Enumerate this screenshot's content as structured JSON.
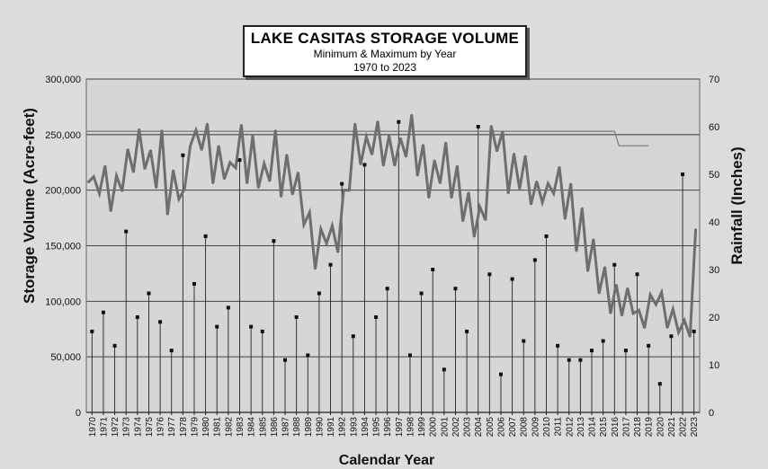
{
  "chart_data": {
    "type": "line",
    "title": "LAKE CASITAS STORAGE VOLUME",
    "subtitle": "Minimum & Maximum by Year",
    "subtitle2": "1970 to 2023",
    "xlabel": "Calendar Year",
    "ylabel": "Storage Volume (Acre-feet)",
    "y2label": "Rainfall (Inches)",
    "ylim": [
      0,
      300000
    ],
    "y2lim": [
      0,
      70
    ],
    "yticks": [
      0,
      50000,
      100000,
      150000,
      200000,
      250000,
      300000
    ],
    "ytick_labels": [
      "0",
      "50,000",
      "100,000",
      "150,000",
      "200,000",
      "250,000",
      "300,000"
    ],
    "y2ticks": [
      0,
      10,
      20,
      30,
      40,
      50,
      60,
      70
    ],
    "y2tick_labels": [
      "0",
      "10",
      "20",
      "30",
      "40",
      "50",
      "60",
      "70"
    ],
    "grid": true,
    "categories": [
      "1970",
      "1971",
      "1972",
      "1973",
      "1974",
      "1975",
      "1976",
      "1977",
      "1978",
      "1979",
      "1980",
      "1981",
      "1982",
      "1983",
      "1984",
      "1985",
      "1986",
      "1987",
      "1988",
      "1989",
      "1990",
      "1991",
      "1992",
      "1993",
      "1994",
      "1995",
      "1996",
      "1997",
      "1998",
      "1999",
      "2000",
      "2001",
      "2002",
      "2003",
      "2004",
      "2005",
      "2006",
      "2007",
      "2008",
      "2009",
      "2010",
      "2011",
      "2012",
      "2013",
      "2014",
      "2015",
      "2016",
      "2017",
      "2018",
      "2019",
      "2020",
      "2021",
      "2022",
      "2023"
    ],
    "storage_max": [
      212000,
      222000,
      213000,
      237000,
      255000,
      236000,
      254000,
      218000,
      201000,
      254000,
      260000,
      240000,
      225000,
      259000,
      249000,
      224000,
      254000,
      232000,
      216000,
      180000,
      165000,
      168000,
      200000,
      260000,
      248000,
      262000,
      249000,
      247000,
      268000,
      241000,
      227000,
      243000,
      222000,
      198000,
      185000,
      258000,
      253000,
      233000,
      231000,
      208000,
      206000,
      221000,
      206000,
      184000,
      156000,
      131000,
      115000,
      112000,
      92000,
      106000,
      108000,
      93000,
      83000,
      165000
    ],
    "storage_min": [
      207000,
      197000,
      181000,
      199000,
      216000,
      219000,
      202000,
      178000,
      192000,
      240000,
      236000,
      206000,
      210000,
      220000,
      206000,
      202000,
      208000,
      194000,
      196000,
      169000,
      129000,
      152000,
      144000,
      200000,
      223000,
      232000,
      222000,
      222000,
      230000,
      213000,
      193000,
      206000,
      193000,
      172000,
      158000,
      173000,
      235000,
      197000,
      201000,
      187000,
      189000,
      197000,
      174000,
      145000,
      127000,
      107000,
      89000,
      87000,
      89000,
      76000,
      97000,
      76000,
      72000,
      68000
    ],
    "max_line": {
      "start_year": "1970",
      "end_year": "2016",
      "level": 253000,
      "after_level": 240000,
      "after_end_year": "2019"
    },
    "top_line": {
      "level": 250000
    },
    "rainfall": [
      17,
      21,
      14,
      38,
      20,
      25,
      19,
      13,
      54,
      27,
      37,
      18,
      22,
      53,
      18,
      17,
      36,
      11,
      20,
      12,
      25,
      31,
      48,
      16,
      52,
      20,
      26,
      61,
      12,
      25,
      30,
      9,
      26,
      17,
      60,
      29,
      8,
      28,
      15,
      32,
      37,
      14,
      11,
      11,
      13,
      15,
      31,
      13,
      29,
      14,
      6,
      16,
      50,
      17
    ],
    "series": [
      {
        "name": "",
        "role": "storage-max"
      },
      {
        "name": "",
        "role": "storage-min"
      },
      {
        "name": "",
        "role": "rainfall"
      }
    ]
  }
}
